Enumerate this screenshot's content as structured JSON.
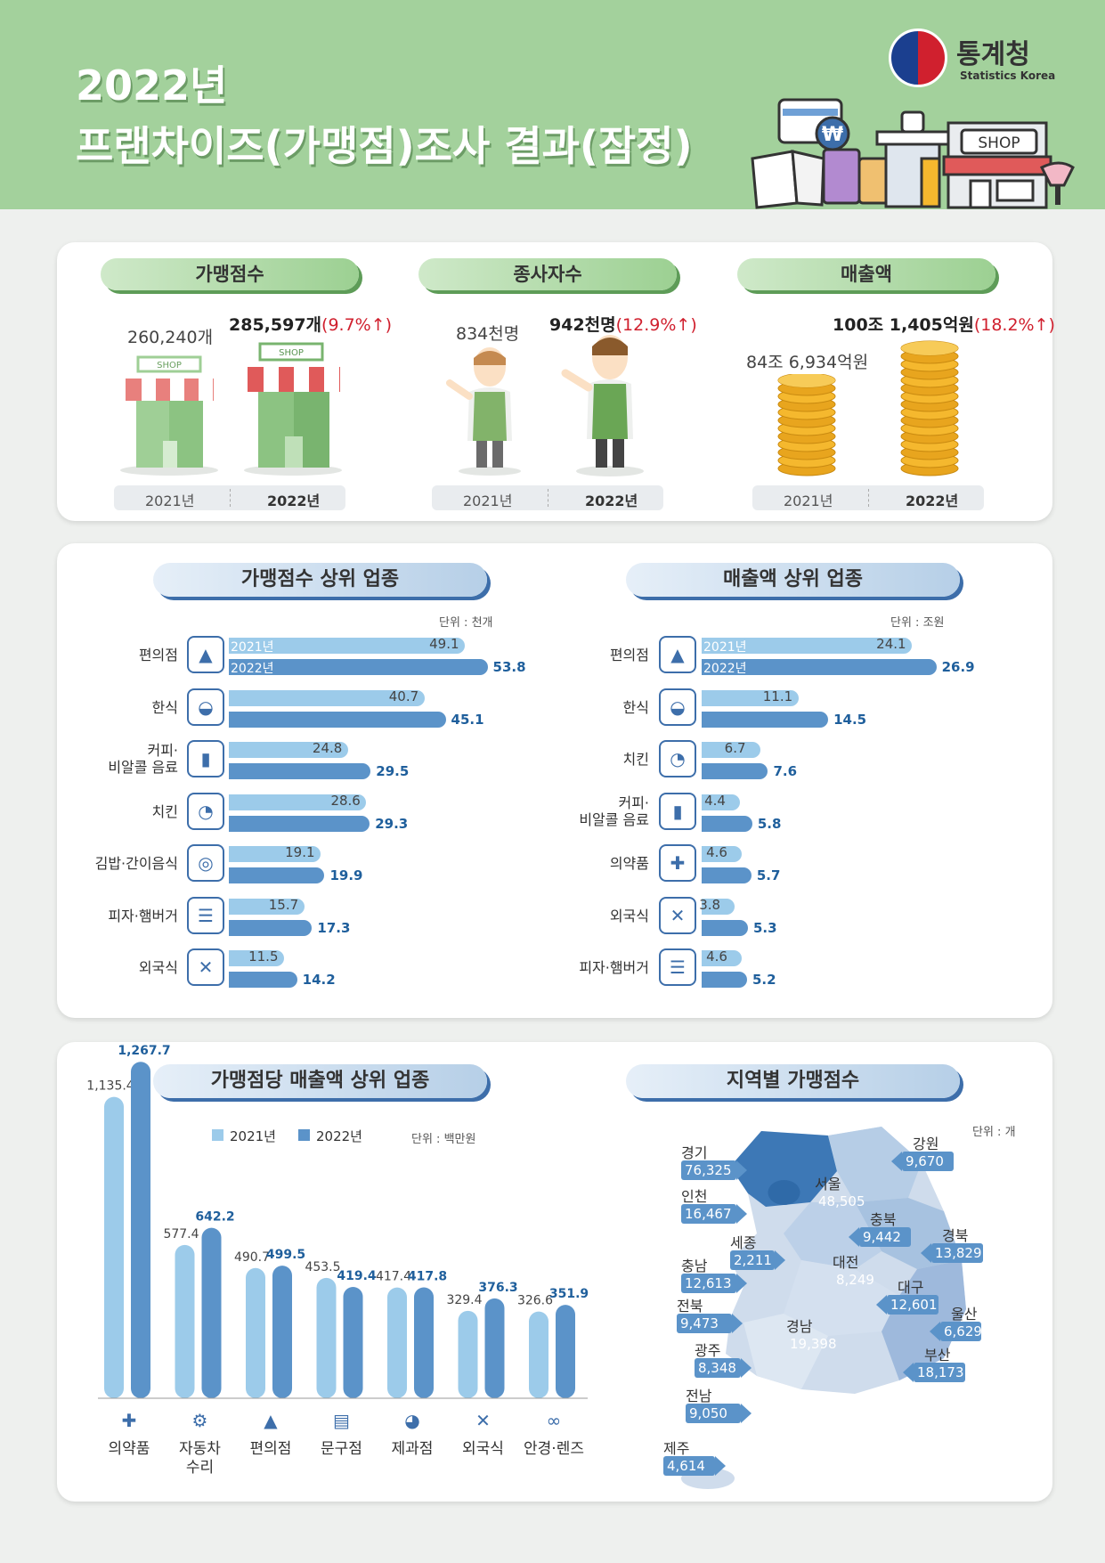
{
  "header": {
    "year_title": "2022년",
    "main_title": "프랜차이즈(가맹점)조사 결과(잠정)",
    "logo_ko": "통계청",
    "logo_en": "Statistics Korea",
    "shop_sign": "SHOP",
    "won_symbol": "₩"
  },
  "summary": {
    "stores": {
      "title": "가맹점수",
      "v2021": "260,240개",
      "v2022": "285,597개",
      "change": "(9.7%↑)",
      "sign": "SHOP",
      "year1": "2021년",
      "year2": "2022년"
    },
    "workers": {
      "title": "종사자수",
      "v2021": "834천명",
      "v2022": "942천명",
      "change": "(12.9%↑)",
      "year1": "2021년",
      "year2": "2022년"
    },
    "sales": {
      "title": "매출액",
      "v2021": "84조 6,934억원",
      "v2022": "100조 1,405억원",
      "change": "(18.2%↑)",
      "year1": "2021년",
      "year2": "2022년"
    }
  },
  "colors": {
    "c2021": "#9ccbea",
    "c2022": "#5b93c9",
    "up": "#d0202e",
    "header_green": "#a3d19c"
  },
  "chart_data": [
    {
      "type": "bar",
      "orientation": "horizontal",
      "title": "가맹점수 상위 업종",
      "unit": "단위 : 천개",
      "categories": [
        "편의점",
        "한식",
        "커피·\n비알콜 음료",
        "치킨",
        "김밥·간이음식",
        "피자·햄버거",
        "외국식"
      ],
      "icons": [
        "convenience-store-icon",
        "bowl-icon",
        "cup-icon",
        "chicken-icon",
        "kimbap-icon",
        "burger-icon",
        "fork-knife-icon"
      ],
      "series": [
        {
          "name": "2021년",
          "values": [
            49.1,
            40.7,
            24.8,
            28.6,
            19.1,
            15.7,
            11.5
          ]
        },
        {
          "name": "2022년",
          "values": [
            53.8,
            45.1,
            29.5,
            29.3,
            19.9,
            17.3,
            14.2
          ]
        }
      ]
    },
    {
      "type": "bar",
      "orientation": "horizontal",
      "title": "매출액 상위 업종",
      "unit": "단위 : 조원",
      "categories": [
        "편의점",
        "한식",
        "치킨",
        "커피·\n비알콜 음료",
        "의약품",
        "외국식",
        "피자·햄버거"
      ],
      "icons": [
        "convenience-store-icon",
        "bowl-icon",
        "chicken-icon",
        "cup-icon",
        "medicine-icon",
        "fork-knife-icon",
        "burger-icon"
      ],
      "series": [
        {
          "name": "2021년",
          "values": [
            24.1,
            11.1,
            6.7,
            4.4,
            4.6,
            3.8,
            4.6
          ]
        },
        {
          "name": "2022년",
          "values": [
            26.9,
            14.5,
            7.6,
            5.8,
            5.7,
            5.3,
            5.2
          ]
        }
      ]
    },
    {
      "type": "bar",
      "title": "가맹점당 매출액 상위 업종",
      "unit": "단위 : 백만원",
      "categories": [
        "의약품",
        "자동차\n수리",
        "편의점",
        "문구점",
        "제과점",
        "외국식",
        "안경·렌즈"
      ],
      "icons": [
        "medicine-icon",
        "car-repair-icon",
        "convenience-store-icon",
        "stationery-icon",
        "bakery-icon",
        "fork-knife-icon",
        "glasses-icon"
      ],
      "series": [
        {
          "name": "2021년",
          "values": [
            1135.4,
            577.4,
            490.7,
            453.5,
            417.4,
            329.4,
            326.6
          ],
          "labels": [
            "1,135.4",
            "577.4",
            "490.7",
            "453.5",
            "417.4",
            "329.4",
            "326.6"
          ]
        },
        {
          "name": "2022년",
          "values": [
            1267.7,
            642.2,
            499.5,
            419.4,
            417.8,
            376.3,
            351.9
          ],
          "labels": [
            "1,267.7",
            "642.2",
            "499.5",
            "419.4",
            "417.8",
            "376.3",
            "351.9"
          ]
        }
      ]
    },
    {
      "type": "map",
      "title": "지역별 가맹점수",
      "unit": "단위 : 개",
      "regions": [
        {
          "name": "경기",
          "value": "76,325"
        },
        {
          "name": "강원",
          "value": "9,670"
        },
        {
          "name": "인천",
          "value": "16,467"
        },
        {
          "name": "서울",
          "value": "48,505"
        },
        {
          "name": "충북",
          "value": "9,442"
        },
        {
          "name": "경북",
          "value": "13,829"
        },
        {
          "name": "세종",
          "value": "2,211"
        },
        {
          "name": "대전",
          "value": "8,249"
        },
        {
          "name": "충남",
          "value": "12,613"
        },
        {
          "name": "대구",
          "value": "12,601"
        },
        {
          "name": "전북",
          "value": "9,473"
        },
        {
          "name": "울산",
          "value": "6,629"
        },
        {
          "name": "경남",
          "value": "19,398"
        },
        {
          "name": "광주",
          "value": "8,348"
        },
        {
          "name": "부산",
          "value": "18,173"
        },
        {
          "name": "전남",
          "value": "9,050"
        },
        {
          "name": "제주",
          "value": "4,614"
        }
      ]
    }
  ]
}
